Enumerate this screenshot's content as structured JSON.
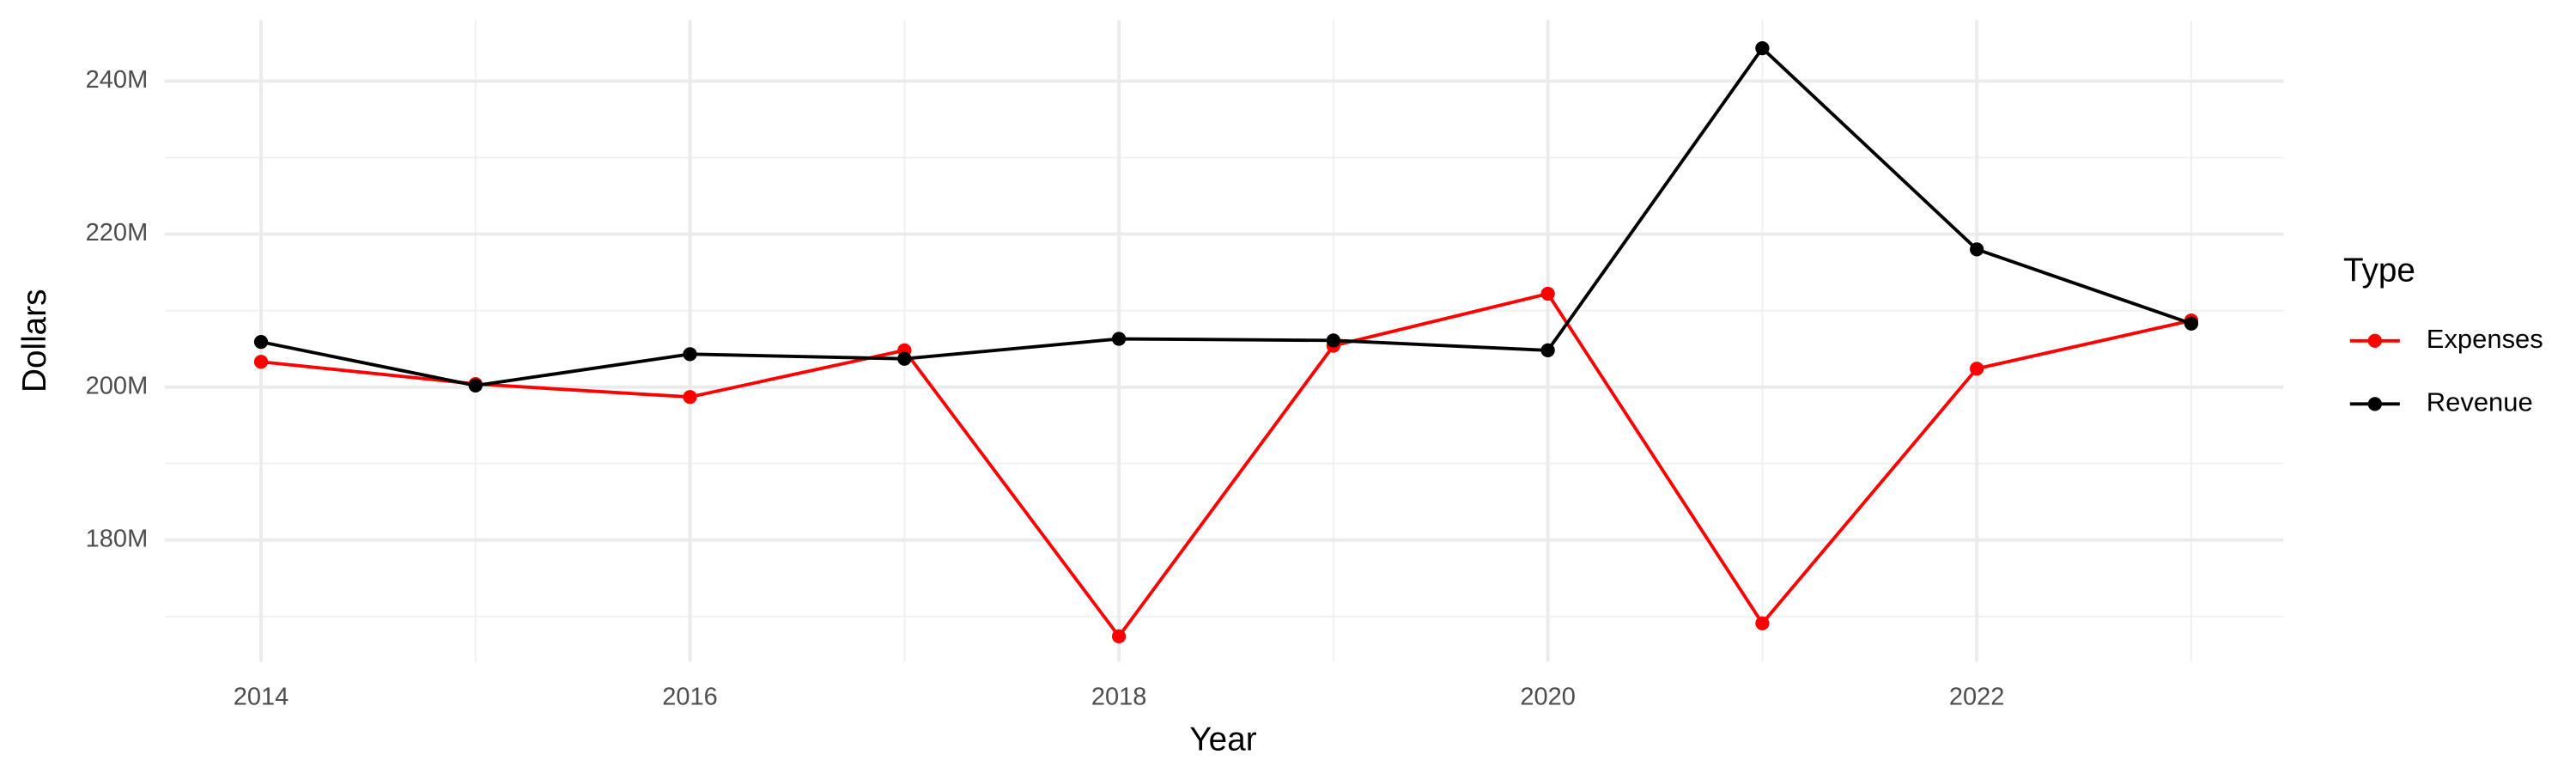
{
  "chart_data": {
    "type": "line",
    "x_label": "Year",
    "y_label": "Dollars",
    "legend_title": "Type",
    "legend_position": "right",
    "x": [
      2014,
      2015,
      2016,
      2017,
      2018,
      2019,
      2020,
      2021,
      2022,
      2023
    ],
    "series": [
      {
        "name": "Expenses",
        "color": "#ff0000",
        "values": [
          203300000,
          200400000,
          198700000,
          204800000,
          167400000,
          205400000,
          212200000,
          169100000,
          202400000,
          208700000
        ]
      },
      {
        "name": "Revenue",
        "color": "#000000",
        "values": [
          205900000,
          200200000,
          204300000,
          203700000,
          206300000,
          206100000,
          204800000,
          244300000,
          218000000,
          208300000
        ]
      }
    ],
    "xlim": [
      2013.55,
      2023.43
    ],
    "xticks": [
      2014,
      2016,
      2018,
      2020,
      2022
    ],
    "ylim": [
      164100000,
      248000000
    ],
    "yticks": [
      {
        "value": 180000000,
        "label": "180M"
      },
      {
        "value": 200000000,
        "label": "200M"
      },
      {
        "value": 220000000,
        "label": "220M"
      },
      {
        "value": 240000000,
        "label": "240M"
      }
    ],
    "grid": true
  }
}
